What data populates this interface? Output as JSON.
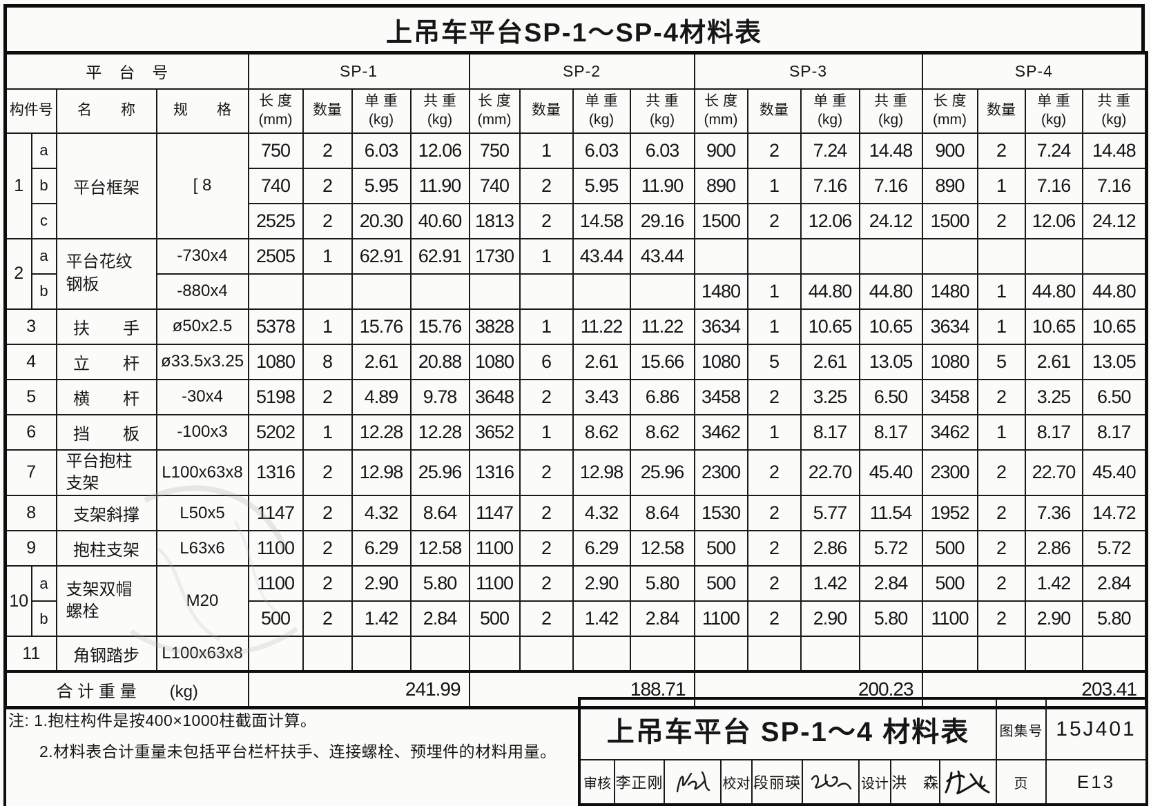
{
  "sheet_title": "上吊车平台SP-1～SP-4材料表",
  "table": {
    "header": {
      "platform_label": "平　台　号",
      "platforms": [
        "SP-1",
        "SP-2",
        "SP-3",
        "SP-4"
      ],
      "col_component": "构件号",
      "col_name": "名　　称",
      "col_spec": "规　　格",
      "col_length": "长 度",
      "col_length_unit": "(mm)",
      "col_qty": "数量",
      "col_unit_weight": "单 重",
      "col_unit_weight_unit": "(kg)",
      "col_total_weight": "共 重",
      "col_total_weight_unit": "(kg)"
    },
    "rows": [
      {
        "no": "1",
        "nospan": 3,
        "letter": "a",
        "name": "平台框架",
        "nspan": 3,
        "spec": "[ 8",
        "sspan": 3,
        "v": [
          "750",
          "2",
          "6.03",
          "12.06",
          "750",
          "1",
          "6.03",
          "6.03",
          "900",
          "2",
          "7.24",
          "14.48",
          "900",
          "2",
          "7.24",
          "14.48"
        ]
      },
      {
        "letter": "b",
        "v": [
          "740",
          "2",
          "5.95",
          "11.90",
          "740",
          "2",
          "5.95",
          "11.90",
          "890",
          "1",
          "7.16",
          "7.16",
          "890",
          "1",
          "7.16",
          "7.16"
        ]
      },
      {
        "letter": "c",
        "v": [
          "2525",
          "2",
          "20.30",
          "40.60",
          "1813",
          "2",
          "14.58",
          "29.16",
          "1500",
          "2",
          "12.06",
          "24.12",
          "1500",
          "2",
          "12.06",
          "24.12"
        ]
      },
      {
        "no": "2",
        "nospan": 2,
        "letter": "a",
        "name": "平台花纹钢板",
        "nlines": [
          "平台花纹",
          "钢板"
        ],
        "nspan": 2,
        "spec": "-730x4",
        "v": [
          "2505",
          "1",
          "62.91",
          "62.91",
          "1730",
          "1",
          "43.44",
          "43.44",
          "",
          "",
          "",
          "",
          "",
          "",
          "",
          ""
        ]
      },
      {
        "letter": "b",
        "spec": "-880x4",
        "v": [
          "",
          "",
          "",
          "",
          "",
          "",
          "",
          "",
          "1480",
          "1",
          "44.80",
          "44.80",
          "1480",
          "1",
          "44.80",
          "44.80"
        ]
      },
      {
        "no": "3",
        "name": "扶　　手",
        "spec": "ø50x2.5",
        "v": [
          "5378",
          "1",
          "15.76",
          "15.76",
          "3828",
          "1",
          "11.22",
          "11.22",
          "3634",
          "1",
          "10.65",
          "10.65",
          "3634",
          "1",
          "10.65",
          "10.65"
        ]
      },
      {
        "no": "4",
        "name": "立　　杆",
        "spec": "ø33.5x3.25",
        "v": [
          "1080",
          "8",
          "2.61",
          "20.88",
          "1080",
          "6",
          "2.61",
          "15.66",
          "1080",
          "5",
          "2.61",
          "13.05",
          "1080",
          "5",
          "2.61",
          "13.05"
        ]
      },
      {
        "no": "5",
        "name": "横　　杆",
        "spec": "-30x4",
        "v": [
          "5198",
          "2",
          "4.89",
          "9.78",
          "3648",
          "2",
          "3.43",
          "6.86",
          "3458",
          "2",
          "3.25",
          "6.50",
          "3458",
          "2",
          "3.25",
          "6.50"
        ]
      },
      {
        "no": "6",
        "name": "挡　　板",
        "spec": "-100x3",
        "v": [
          "5202",
          "1",
          "12.28",
          "12.28",
          "3652",
          "1",
          "8.62",
          "8.62",
          "3462",
          "1",
          "8.17",
          "8.17",
          "3462",
          "1",
          "8.17",
          "8.17"
        ]
      },
      {
        "no": "7",
        "name": "平台抱柱支架",
        "nlines": [
          "平台抱柱",
          "支架"
        ],
        "spec": "L100x63x8",
        "v": [
          "1316",
          "2",
          "12.98",
          "25.96",
          "1316",
          "2",
          "12.98",
          "25.96",
          "2300",
          "2",
          "22.70",
          "45.40",
          "2300",
          "2",
          "22.70",
          "45.40"
        ]
      },
      {
        "no": "8",
        "name": "支架斜撑",
        "spec": "L50x5",
        "v": [
          "1147",
          "2",
          "4.32",
          "8.64",
          "1147",
          "2",
          "4.32",
          "8.64",
          "1530",
          "2",
          "5.77",
          "11.54",
          "1952",
          "2",
          "7.36",
          "14.72"
        ]
      },
      {
        "no": "9",
        "name": "抱柱支架",
        "spec": "L63x6",
        "v": [
          "1100",
          "2",
          "6.29",
          "12.58",
          "1100",
          "2",
          "6.29",
          "12.58",
          "500",
          "2",
          "2.86",
          "5.72",
          "500",
          "2",
          "2.86",
          "5.72"
        ]
      },
      {
        "no": "10",
        "nospan": 2,
        "letter": "a",
        "name": "支架双帽螺栓",
        "nlines": [
          "支架双帽",
          "螺栓"
        ],
        "nspan": 2,
        "spec": "M20",
        "sspan": 2,
        "v": [
          "1100",
          "2",
          "2.90",
          "5.80",
          "1100",
          "2",
          "2.90",
          "5.80",
          "500",
          "2",
          "1.42",
          "2.84",
          "500",
          "2",
          "1.42",
          "2.84"
        ]
      },
      {
        "letter": "b",
        "v": [
          "500",
          "2",
          "1.42",
          "2.84",
          "500",
          "2",
          "1.42",
          "2.84",
          "1100",
          "2",
          "2.90",
          "5.80",
          "1100",
          "2",
          "2.90",
          "5.80"
        ]
      },
      {
        "no": "11",
        "name": "角钢踏步",
        "spec": "L100x63x8",
        "v": [
          "",
          "",
          "",
          "",
          "",
          "",
          "",
          "",
          "",
          "",
          "",
          "",
          "",
          "",
          "",
          ""
        ]
      }
    ],
    "total_label": "合 计 重 量",
    "total_unit": "(kg)",
    "totals": [
      "241.99",
      "188.71",
      "200.23",
      "203.41"
    ]
  },
  "notes": {
    "line1": "注: 1.抱柱构件是按400×1000柱截面计算。",
    "line2": "2.材料表合计重量未包括平台栏杆扶手、连接螺栓、预埋件的材料用量。"
  },
  "title_block": {
    "title": "上吊车平台 SP-1～4 材料表",
    "atlas_label": "图集号",
    "atlas_no": "15J401",
    "page_label": "页",
    "page_no": "E13",
    "review_label": "审核",
    "reviewer": "李正刚",
    "check_label": "校对",
    "checker": "段丽瑛",
    "design_label": "设计",
    "designer": "洪　森"
  }
}
